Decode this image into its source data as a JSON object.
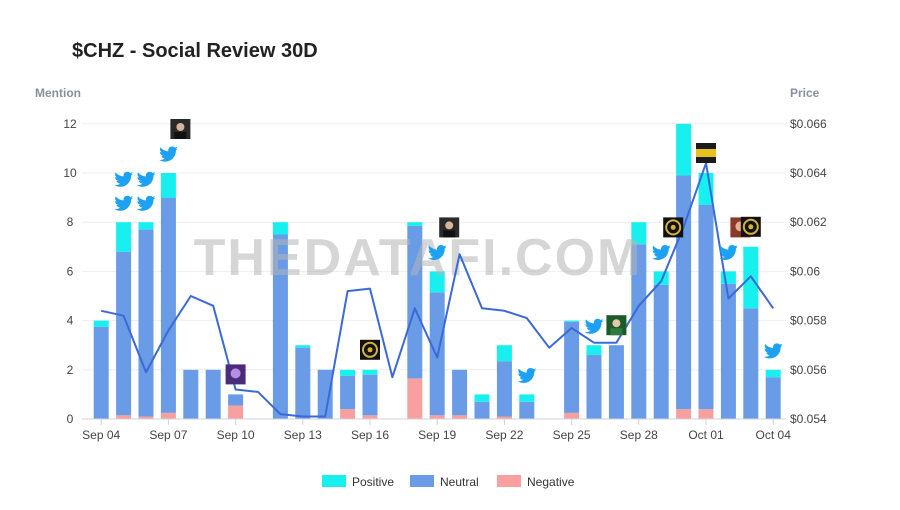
{
  "colors": {
    "positive": "#18f0f0",
    "neutral": "#6a9be6",
    "negative": "#f8a0a0",
    "price_line": "#3b6ad6",
    "twitter": "#1da1f2"
  },
  "chart_data": {
    "type": "bar",
    "title": "$CHZ - Social Review 30D",
    "watermark": "THEDATAFI.COM",
    "ylabel_left": "Mention",
    "ylabel_right": "Price",
    "ylim_left": [
      0,
      13
    ],
    "ylim_right": [
      0.054,
      0.0667
    ],
    "yticks_left": [
      0,
      2,
      4,
      6,
      8,
      10,
      12
    ],
    "yticks_right": [
      "$0.054",
      "$0.056",
      "$0.058",
      "$0.06",
      "$0.062",
      "$0.064",
      "$0.066"
    ],
    "yticks_right_values": [
      0.054,
      0.056,
      0.058,
      0.06,
      0.062,
      0.064,
      0.066
    ],
    "x_tick_labels": [
      "Sep 04",
      "Sep 07",
      "Sep 10",
      "Sep 13",
      "Sep 16",
      "Sep 19",
      "Sep 22",
      "Sep 25",
      "Sep 28",
      "Oct 01",
      "Oct 04"
    ],
    "x_tick_indices": [
      0,
      3,
      6,
      9,
      12,
      15,
      18,
      21,
      24,
      27,
      30
    ],
    "categories": [
      "Sep 04",
      "Sep 05",
      "Sep 06",
      "Sep 07",
      "Sep 08",
      "Sep 09",
      "Sep 10",
      "Sep 11",
      "Sep 12",
      "Sep 13",
      "Sep 14",
      "Sep 15",
      "Sep 16",
      "Sep 17",
      "Sep 18",
      "Sep 19",
      "Sep 20",
      "Sep 21",
      "Sep 22",
      "Sep 23",
      "Sep 24",
      "Sep 25",
      "Sep 26",
      "Sep 27",
      "Sep 28",
      "Sep 29",
      "Sep 30",
      "Oct 01",
      "Oct 02",
      "Oct 03",
      "Oct 04"
    ],
    "series": [
      {
        "name": "Negative",
        "values": [
          0,
          0.15,
          0.1,
          0.25,
          0,
          0,
          0.55,
          0,
          0,
          0,
          0,
          0.4,
          0.15,
          0,
          1.65,
          0.15,
          0.15,
          0,
          0.1,
          0,
          0,
          0.25,
          0,
          0,
          0,
          0,
          0.4,
          0.4,
          0,
          0,
          0
        ]
      },
      {
        "name": "Neutral",
        "values": [
          3.75,
          6.65,
          7.6,
          8.75,
          2,
          2,
          0.45,
          0,
          7.5,
          2.9,
          2,
          1.35,
          1.65,
          0,
          6.2,
          5.0,
          1.85,
          0.7,
          2.25,
          0.7,
          0,
          3.7,
          2.6,
          3.0,
          7.1,
          5.45,
          9.5,
          8.3,
          5.5,
          4.5,
          1.7
        ]
      },
      {
        "name": "Positive",
        "values": [
          0.25,
          1.2,
          0.3,
          1.0,
          0,
          0,
          0,
          0,
          0.5,
          0.1,
          0,
          0.25,
          0.2,
          0,
          0.15,
          0.85,
          0,
          0.3,
          0.65,
          0.3,
          0,
          0.05,
          0.4,
          0,
          0.9,
          0.55,
          2.1,
          1.3,
          0.5,
          2.5,
          0.3
        ]
      }
    ],
    "price": [
      0.0584,
      0.0582,
      0.0559,
      0.0576,
      0.059,
      0.0586,
      0.0552,
      0.0551,
      0.0542,
      0.0541,
      0.0541,
      0.0592,
      0.0593,
      0.0557,
      0.0585,
      0.0565,
      0.0607,
      0.0585,
      0.0584,
      0.0581,
      0.0569,
      0.0577,
      0.0571,
      0.0571,
      0.0586,
      0.0596,
      0.0618,
      0.0644,
      0.0589,
      0.0598,
      0.0585
    ],
    "tweet_markers": [
      {
        "day": 1,
        "count": 2
      },
      {
        "day": 2,
        "count": 2
      },
      {
        "day": 3,
        "count": 1
      },
      {
        "day": 15,
        "count": 1
      },
      {
        "day": 19,
        "count": 1
      },
      {
        "day": 22,
        "count": 1
      },
      {
        "day": 25,
        "count": 1
      },
      {
        "day": 28,
        "count": 1
      },
      {
        "day": 30,
        "count": 1
      }
    ],
    "avatar_markers": [
      {
        "day": 3,
        "kind": "person"
      },
      {
        "day": 6,
        "kind": "purple"
      },
      {
        "day": 12,
        "kind": "badge"
      },
      {
        "day": 15,
        "kind": "person"
      },
      {
        "day": 23,
        "kind": "green"
      },
      {
        "day": 25,
        "kind": "badge"
      },
      {
        "day": 27,
        "kind": "gold"
      },
      {
        "day": 28,
        "kind": "red"
      },
      {
        "day": 29,
        "kind": "badge"
      }
    ],
    "legend": [
      {
        "name": "Positive",
        "color": "#18f0f0"
      },
      {
        "name": "Neutral",
        "color": "#6a9be6"
      },
      {
        "name": "Negative",
        "color": "#f8a0a0"
      }
    ]
  }
}
